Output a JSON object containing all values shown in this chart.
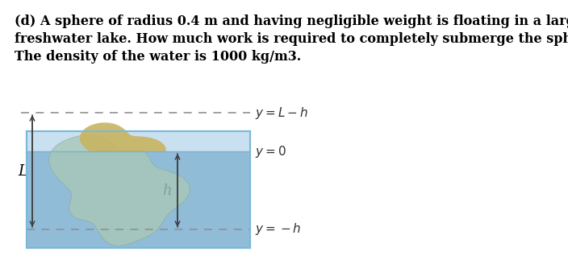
{
  "text_line1": "(d) A sphere of radius 0.4 m and having negligible weight is floating in a large",
  "text_line2": "freshwater lake. How much work is required to completely submerge the sphere?",
  "text_line3": "The density of the water is 1000 kg/m3.",
  "background_color": "#ffffff",
  "water_fill_color": "#a8cce0",
  "water_bg_color": "#c0ddf0",
  "sphere_sub_color": "#b0cfc0",
  "sphere_above_color": "#d4c070",
  "fig_width": 7.04,
  "fig_height": 3.23,
  "dpi": 100,
  "text_fontsize": 11.5
}
